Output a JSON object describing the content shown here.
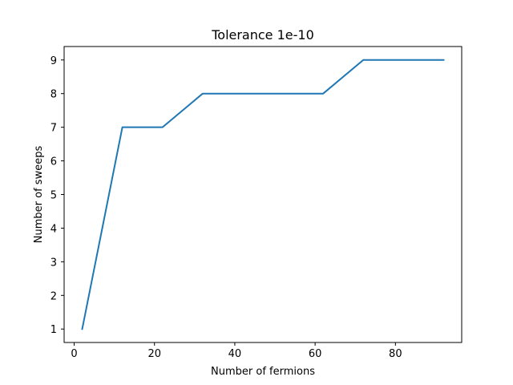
{
  "chart_data": {
    "type": "line",
    "title": "Tolerance 1e-10",
    "xlabel": "Number of fermions",
    "ylabel": "Number of sweeps",
    "xlim": [
      -2.5,
      96.5
    ],
    "ylim": [
      0.6,
      9.4
    ],
    "x_ticks": [
      0,
      20,
      40,
      60,
      80
    ],
    "y_ticks": [
      1,
      2,
      3,
      4,
      5,
      6,
      7,
      8,
      9
    ],
    "grid": false,
    "legend": "none",
    "series": [
      {
        "color": "#1f77b4",
        "x": [
          2,
          12,
          22,
          32,
          42,
          52,
          62,
          72,
          82,
          92
        ],
        "y": [
          1,
          7,
          7,
          8,
          8,
          8,
          8,
          9,
          9,
          9
        ]
      }
    ]
  }
}
